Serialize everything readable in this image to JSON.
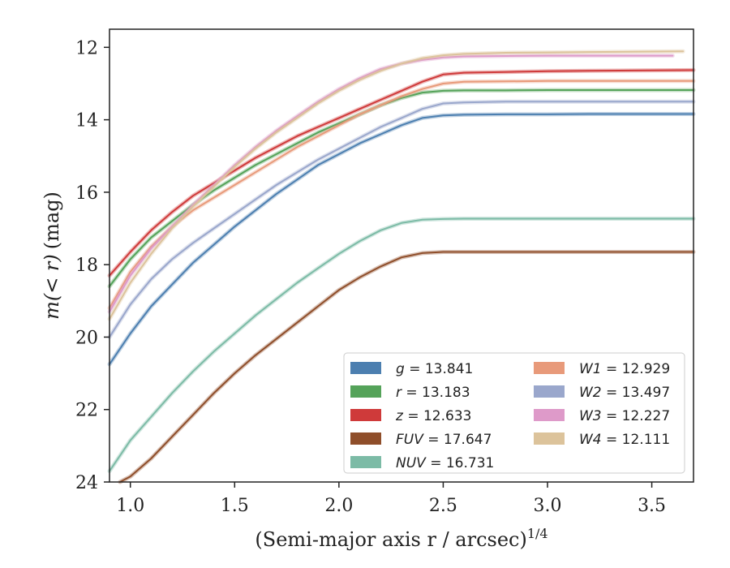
{
  "chart_data": {
    "type": "line",
    "xlabel": "(Semi-major axis r / arcsec)",
    "xlabel_sup": "1/4",
    "ylabel_left": "m(< r)",
    "ylabel_right": "(mag)",
    "xlim": [
      0.9,
      3.7
    ],
    "ylim": [
      24,
      11.5
    ],
    "y_inverted": true,
    "grid": false,
    "legend_position": "lower-right",
    "xticks": [
      1.0,
      1.5,
      2.0,
      2.5,
      3.0,
      3.5
    ],
    "xtick_labels": [
      "1.0",
      "1.5",
      "2.0",
      "2.5",
      "3.0",
      "3.5"
    ],
    "yticks": [
      12,
      14,
      16,
      18,
      20,
      22,
      24
    ],
    "ytick_labels": [
      "12",
      "14",
      "16",
      "18",
      "20",
      "22",
      "24"
    ],
    "series": [
      {
        "name": "g",
        "value": "13.841",
        "color": "#4c7fb0",
        "x": [
          0.9,
          1.0,
          1.1,
          1.2,
          1.3,
          1.4,
          1.5,
          1.6,
          1.7,
          1.8,
          1.9,
          2.0,
          2.1,
          2.2,
          2.3,
          2.4,
          2.5,
          2.6,
          2.8,
          3.0,
          3.2,
          3.4,
          3.7
        ],
        "y": [
          20.75,
          19.9,
          19.15,
          18.55,
          17.95,
          17.45,
          16.95,
          16.5,
          16.05,
          15.65,
          15.25,
          14.95,
          14.65,
          14.4,
          14.15,
          13.95,
          13.88,
          13.86,
          13.85,
          13.85,
          13.84,
          13.84,
          13.84
        ]
      },
      {
        "name": "r",
        "value": "13.183",
        "color": "#55a35a",
        "x": [
          0.9,
          1.0,
          1.1,
          1.2,
          1.3,
          1.4,
          1.5,
          1.6,
          1.7,
          1.8,
          1.9,
          2.0,
          2.1,
          2.2,
          2.3,
          2.4,
          2.5,
          2.6,
          2.8,
          3.0,
          3.2,
          3.4,
          3.7
        ],
        "y": [
          18.6,
          17.85,
          17.25,
          16.8,
          16.35,
          15.95,
          15.6,
          15.25,
          14.95,
          14.65,
          14.35,
          14.1,
          13.85,
          13.6,
          13.4,
          13.25,
          13.2,
          13.19,
          13.19,
          13.18,
          13.18,
          13.18,
          13.18
        ]
      },
      {
        "name": "z",
        "value": "12.633",
        "color": "#cf3a3a",
        "x": [
          0.9,
          1.0,
          1.1,
          1.2,
          1.3,
          1.4,
          1.5,
          1.6,
          1.7,
          1.8,
          1.9,
          2.0,
          2.1,
          2.2,
          2.3,
          2.4,
          2.5,
          2.6,
          2.8,
          3.0,
          3.2,
          3.4,
          3.7
        ],
        "y": [
          18.3,
          17.65,
          17.05,
          16.55,
          16.1,
          15.75,
          15.4,
          15.05,
          14.75,
          14.45,
          14.2,
          13.95,
          13.7,
          13.45,
          13.2,
          12.95,
          12.75,
          12.7,
          12.68,
          12.66,
          12.65,
          12.64,
          12.63
        ]
      },
      {
        "name": "FUV",
        "value": "17.647",
        "color": "#8f4e2a",
        "x": [
          0.95,
          1.0,
          1.1,
          1.2,
          1.3,
          1.4,
          1.5,
          1.6,
          1.7,
          1.8,
          1.9,
          2.0,
          2.1,
          2.2,
          2.3,
          2.4,
          2.5,
          2.6,
          2.8,
          3.0,
          3.2,
          3.5,
          3.7
        ],
        "y": [
          24.0,
          23.85,
          23.35,
          22.75,
          22.15,
          21.55,
          21.0,
          20.5,
          20.05,
          19.6,
          19.15,
          18.7,
          18.35,
          18.05,
          17.8,
          17.68,
          17.65,
          17.65,
          17.65,
          17.65,
          17.65,
          17.65,
          17.65
        ]
      },
      {
        "name": "NUV",
        "value": "16.731",
        "color": "#7cbba6",
        "x": [
          0.9,
          1.0,
          1.1,
          1.2,
          1.3,
          1.4,
          1.5,
          1.6,
          1.7,
          1.8,
          1.9,
          2.0,
          2.1,
          2.2,
          2.3,
          2.4,
          2.5,
          2.6,
          2.8,
          3.0,
          3.2,
          3.5,
          3.7
        ],
        "y": [
          23.7,
          22.85,
          22.2,
          21.55,
          20.95,
          20.4,
          19.9,
          19.4,
          18.95,
          18.5,
          18.1,
          17.7,
          17.35,
          17.05,
          16.85,
          16.76,
          16.74,
          16.73,
          16.73,
          16.73,
          16.73,
          16.73,
          16.73
        ]
      },
      {
        "name": "W1",
        "value": "12.929",
        "color": "#e89a7a",
        "x": [
          0.9,
          1.0,
          1.1,
          1.2,
          1.3,
          1.4,
          1.5,
          1.6,
          1.7,
          1.8,
          1.9,
          2.0,
          2.1,
          2.2,
          2.3,
          2.4,
          2.5,
          2.6,
          2.8,
          3.0,
          3.2,
          3.4,
          3.7
        ],
        "y": [
          19.2,
          18.2,
          17.5,
          16.95,
          16.5,
          16.15,
          15.8,
          15.45,
          15.1,
          14.75,
          14.45,
          14.15,
          13.85,
          13.6,
          13.35,
          13.15,
          13.0,
          12.95,
          12.94,
          12.93,
          12.93,
          12.93,
          12.93
        ]
      },
      {
        "name": "W2",
        "value": "13.497",
        "color": "#9aa7cc",
        "x": [
          0.9,
          1.0,
          1.1,
          1.2,
          1.3,
          1.4,
          1.5,
          1.6,
          1.7,
          1.8,
          1.9,
          2.0,
          2.1,
          2.2,
          2.3,
          2.4,
          2.5,
          2.6,
          2.8,
          3.0,
          3.2,
          3.4,
          3.7
        ],
        "y": [
          20.0,
          19.1,
          18.4,
          17.85,
          17.4,
          17.0,
          16.6,
          16.2,
          15.8,
          15.45,
          15.1,
          14.8,
          14.5,
          14.2,
          13.95,
          13.7,
          13.55,
          13.52,
          13.5,
          13.5,
          13.5,
          13.5,
          13.5
        ]
      },
      {
        "name": "W3",
        "value": "12.227",
        "color": "#de9ac9",
        "x": [
          0.9,
          1.0,
          1.1,
          1.2,
          1.3,
          1.4,
          1.5,
          1.6,
          1.7,
          1.8,
          1.9,
          2.0,
          2.1,
          2.2,
          2.3,
          2.4,
          2.5,
          2.6,
          2.8,
          3.0,
          3.2,
          3.4,
          3.6
        ],
        "y": [
          19.3,
          18.3,
          17.55,
          16.95,
          16.35,
          15.8,
          15.25,
          14.75,
          14.3,
          13.9,
          13.5,
          13.15,
          12.85,
          12.6,
          12.45,
          12.35,
          12.28,
          12.25,
          12.24,
          12.23,
          12.23,
          12.23,
          12.23
        ]
      },
      {
        "name": "W4",
        "value": "12.111",
        "color": "#dcc39b",
        "x": [
          0.9,
          1.0,
          1.1,
          1.2,
          1.3,
          1.4,
          1.5,
          1.6,
          1.7,
          1.8,
          1.9,
          2.0,
          2.1,
          2.2,
          2.3,
          2.4,
          2.5,
          2.6,
          2.8,
          3.0,
          3.2,
          3.4,
          3.65
        ],
        "y": [
          19.5,
          18.5,
          17.7,
          17.0,
          16.4,
          15.85,
          15.3,
          14.8,
          14.35,
          13.95,
          13.55,
          13.2,
          12.9,
          12.65,
          12.45,
          12.3,
          12.22,
          12.18,
          12.15,
          12.14,
          12.13,
          12.12,
          12.11
        ]
      }
    ]
  }
}
